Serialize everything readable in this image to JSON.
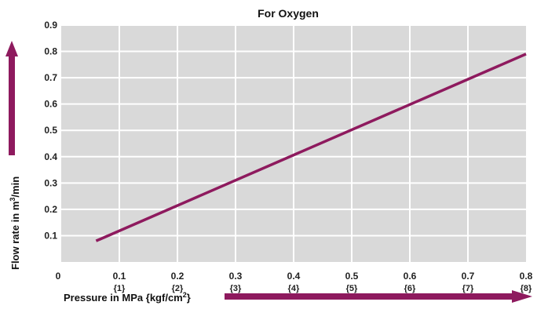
{
  "chart_data": {
    "type": "line",
    "title": "For Oxygen",
    "xlabel": "Pressure in MPa {kgf/cm2}",
    "xlabel_main": "Pressure in MPa {kgf/cm",
    "xlabel_sup": "2",
    "xlabel_end": "}",
    "ylabel": "Flow rate in m3/min",
    "ylabel_main": "Flow rate in m",
    "ylabel_sup": "3",
    "ylabel_end": "/min",
    "xlim": [
      0,
      0.8
    ],
    "ylim": [
      0,
      0.9
    ],
    "x_ticks": [
      "0",
      "0.1",
      "0.2",
      "0.3",
      "0.4",
      "0.5",
      "0.6",
      "0.7",
      "0.8"
    ],
    "x_ticks_secondary": [
      "{1}",
      "{2}",
      "{3}",
      "{4}",
      "{5}",
      "{6}",
      "{7}",
      "{8}"
    ],
    "y_ticks": [
      "0.1",
      "0.2",
      "0.3",
      "0.4",
      "0.5",
      "0.6",
      "0.7",
      "0.8",
      "0.9"
    ],
    "grid": true,
    "series": [
      {
        "x": [
          0.06,
          0.8
        ],
        "y": [
          0.08,
          0.79
        ]
      }
    ],
    "colors": {
      "line": "#8e1a5e",
      "plot_bg": "#d9d9d9",
      "grid": "#ffffff",
      "arrow": "#8e1a5e"
    }
  }
}
